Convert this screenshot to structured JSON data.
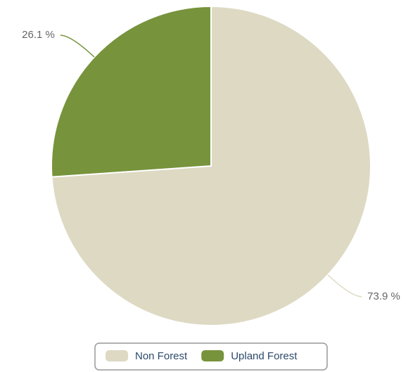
{
  "chart_data": {
    "type": "pie",
    "categories": [
      "Non Forest",
      "Upland Forest"
    ],
    "values": [
      73.9,
      26.1
    ],
    "value_labels": [
      "73.9 %",
      "26.1 %"
    ],
    "colors": [
      "#ddd9c3",
      "#77933c"
    ]
  }
}
